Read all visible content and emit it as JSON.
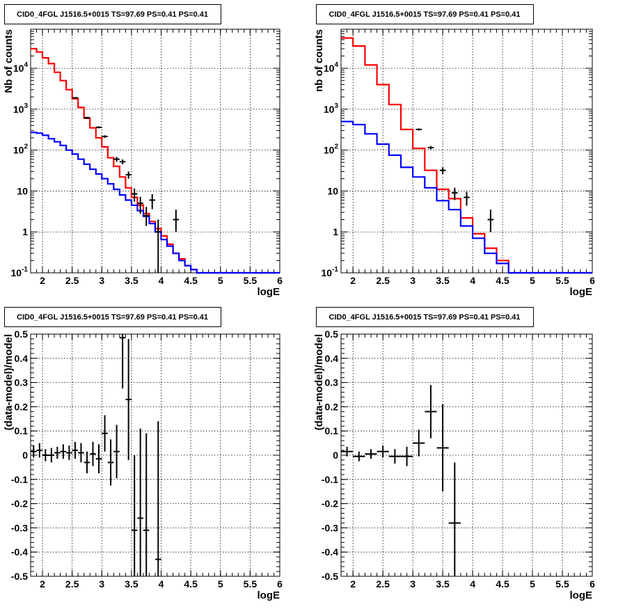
{
  "chart_data": [
    {
      "type": "step",
      "title": "CID0_4FGL J1516.5+0015 TS=97.69 PS=0.41 PS=0.41",
      "xlabel": "logE",
      "ylabel": "Nb of counts",
      "xlim": [
        1.8,
        6
      ],
      "ylim": [
        0.1,
        90000
      ],
      "log_y": true,
      "grid": true,
      "x_ticks": [
        "2",
        "2.5",
        "3",
        "3.5",
        "4",
        "4.5",
        "5",
        "5.5",
        "6"
      ],
      "y_ticks": [
        "10^-1",
        "1",
        "10",
        "10^2",
        "10^3",
        "10^4"
      ],
      "bin_edges": [
        1.8,
        1.9,
        2.0,
        2.1,
        2.2,
        2.3,
        2.4,
        2.5,
        2.6,
        2.7,
        2.8,
        2.9,
        3.0,
        3.1,
        3.2,
        3.3,
        3.4,
        3.5,
        3.6,
        3.7,
        3.8,
        3.9,
        4.0,
        4.1,
        4.2,
        4.3,
        4.4,
        4.5,
        4.6,
        4.7,
        4.8,
        4.9,
        5.0,
        5.1,
        5.2,
        5.3,
        5.4,
        5.5,
        5.6,
        5.7,
        5.8,
        5.9,
        6.0
      ],
      "series": [
        {
          "color": "#ff0000",
          "values": [
            30000,
            25000,
            18000,
            13000,
            8000,
            5000,
            3000,
            1800,
            1100,
            600,
            350,
            200,
            120,
            65,
            40,
            22,
            12,
            7,
            4.5,
            2.8,
            1.8,
            1.2,
            0.8,
            0.5,
            0.3,
            0.22,
            0.15,
            0.12,
            0.1,
            0.1,
            0.1,
            0.1,
            0.1,
            0.1,
            0.1,
            0.1,
            0.1,
            0.1,
            0.1,
            0.1,
            0.1,
            0.1
          ]
        },
        {
          "color": "#0000ff",
          "values": [
            270,
            260,
            230,
            190,
            160,
            130,
            100,
            80,
            60,
            45,
            34,
            26,
            20,
            15,
            11,
            8,
            6,
            4.5,
            3.3,
            2.4,
            1.6,
            1.0,
            0.65,
            0.45,
            0.3,
            0.2,
            0.15,
            0.12,
            0.1,
            0.1,
            0.1,
            0.1,
            0.1,
            0.1,
            0.1,
            0.1,
            0.1,
            0.1,
            0.1,
            0.1,
            0.1,
            0.1
          ]
        }
      ],
      "points": [
        {
          "x": 2.55,
          "y": 1900,
          "elo": 50,
          "ehi": 50
        },
        {
          "x": 2.75,
          "y": 620,
          "elo": 30,
          "ehi": 30
        },
        {
          "x": 2.95,
          "y": 360,
          "elo": 20,
          "ehi": 20
        },
        {
          "x": 3.05,
          "y": 215,
          "elo": 16,
          "ehi": 16
        },
        {
          "x": 3.25,
          "y": 60,
          "elo": 8,
          "ehi": 8
        },
        {
          "x": 3.35,
          "y": 52,
          "elo": 7,
          "ehi": 7
        },
        {
          "x": 3.45,
          "y": 25,
          "elo": 5,
          "ehi": 5
        },
        {
          "x": 3.55,
          "y": 8.5,
          "elo": 3,
          "ehi": 3
        },
        {
          "x": 3.65,
          "y": 5,
          "elo": 2.2,
          "ehi": 2.2
        },
        {
          "x": 3.75,
          "y": 2.5,
          "elo": 1.1,
          "ehi": 1.6
        },
        {
          "x": 3.85,
          "y": 6,
          "elo": 2.4,
          "ehi": 2.4
        },
        {
          "x": 3.95,
          "y": 1,
          "elo": 0.95,
          "ehi": 1.0
        },
        {
          "x": 4.25,
          "y": 2,
          "elo": 1.0,
          "ehi": 1.5
        }
      ]
    },
    {
      "type": "step",
      "title": "CID0_4FGL J1516.5+0015 TS=97.69 PS=0.41 PS=0.41",
      "xlabel": "logE",
      "ylabel": "nb of counts",
      "xlim": [
        1.8,
        6
      ],
      "ylim": [
        0.1,
        90000
      ],
      "log_y": true,
      "grid": true,
      "x_ticks": [
        "2",
        "2.5",
        "3",
        "3.5",
        "4",
        "4.5",
        "5",
        "5.5",
        "6"
      ],
      "y_ticks": [
        "10^-1",
        "1",
        "10",
        "10^2",
        "10^3",
        "10^4"
      ],
      "bin_edges": [
        1.8,
        2.0,
        2.2,
        2.4,
        2.6,
        2.8,
        3.0,
        3.2,
        3.4,
        3.6,
        3.8,
        4.0,
        4.2,
        4.4,
        4.6,
        4.8,
        5.0,
        5.2,
        5.4,
        5.6,
        5.8,
        6.0
      ],
      "series": [
        {
          "color": "#ff0000",
          "values": [
            55000,
            35000,
            12000,
            4000,
            1300,
            320,
            110,
            32,
            11,
            6.5,
            2.2,
            0.9,
            0.4,
            0.2,
            0.1,
            0.1,
            0.1,
            0.1,
            0.1,
            0.1,
            0.1
          ]
        },
        {
          "color": "#0000ff",
          "values": [
            500,
            420,
            250,
            140,
            75,
            38,
            22,
            12,
            5.8,
            3.5,
            1.4,
            0.7,
            0.3,
            0.17,
            0.1,
            0.1,
            0.1,
            0.1,
            0.1,
            0.1,
            0.1
          ]
        }
      ],
      "points": [
        {
          "x": 3.1,
          "y": 320,
          "elo": 18,
          "ehi": 18
        },
        {
          "x": 3.3,
          "y": 115,
          "elo": 11,
          "ehi": 11
        },
        {
          "x": 3.5,
          "y": 32,
          "elo": 6,
          "ehi": 6
        },
        {
          "x": 3.7,
          "y": 9,
          "elo": 3,
          "ehi": 3
        },
        {
          "x": 3.9,
          "y": 7,
          "elo": 2.6,
          "ehi": 2.6
        },
        {
          "x": 4.3,
          "y": 2,
          "elo": 1.0,
          "ehi": 1.5
        }
      ]
    },
    {
      "type": "scatter",
      "title": "CID0_4FGL J1516.5+0015 TS=97.69 PS=0.41 PS=0.41",
      "xlabel": "logE",
      "ylabel": "(data-model)/model",
      "xlim": [
        1.8,
        6
      ],
      "ylim": [
        -0.5,
        0.5
      ],
      "grid": true,
      "x_ticks": [
        "2",
        "2.5",
        "3",
        "3.5",
        "4",
        "4.5",
        "5",
        "5.5",
        "6"
      ],
      "y_ticks": [
        "-0.5",
        "-0.4",
        "-0.3",
        "-0.2",
        "-0.1",
        "0",
        "0.1",
        "0.2",
        "0.3",
        "0.4",
        "0.5"
      ],
      "points": [
        {
          "x": 1.85,
          "y": 0.015,
          "ey": 0.025,
          "ex": 0.05
        },
        {
          "x": 1.95,
          "y": 0.02,
          "ey": 0.03,
          "ex": 0.05
        },
        {
          "x": 2.05,
          "y": 0.0,
          "ey": 0.025,
          "ex": 0.05
        },
        {
          "x": 2.15,
          "y": 0.0,
          "ey": 0.03,
          "ex": 0.05
        },
        {
          "x": 2.25,
          "y": 0.01,
          "ey": 0.025,
          "ex": 0.05
        },
        {
          "x": 2.35,
          "y": 0.015,
          "ey": 0.03,
          "ex": 0.05
        },
        {
          "x": 2.45,
          "y": 0.01,
          "ey": 0.03,
          "ex": 0.05
        },
        {
          "x": 2.55,
          "y": 0.02,
          "ey": 0.035,
          "ex": 0.05
        },
        {
          "x": 2.65,
          "y": 0.01,
          "ey": 0.04,
          "ex": 0.05
        },
        {
          "x": 2.75,
          "y": -0.03,
          "ey": 0.045,
          "ex": 0.05
        },
        {
          "x": 2.85,
          "y": 0.005,
          "ey": 0.05,
          "ex": 0.05
        },
        {
          "x": 2.95,
          "y": -0.015,
          "ey": 0.06,
          "ex": 0.05
        },
        {
          "x": 3.05,
          "y": 0.09,
          "ey": 0.075,
          "ex": 0.05
        },
        {
          "x": 3.15,
          "y": -0.03,
          "ey": 0.095,
          "ex": 0.05
        },
        {
          "x": 3.25,
          "y": 0.015,
          "ey": 0.11,
          "ex": 0.05
        },
        {
          "x": 3.35,
          "y": 0.485,
          "ey": 0.21,
          "ex": 0.05
        },
        {
          "x": 3.45,
          "y": 0.23,
          "ey": 0.25,
          "ex": 0.05
        },
        {
          "x": 3.55,
          "y": -0.31,
          "ey": 0.31,
          "ex": 0.05
        },
        {
          "x": 3.65,
          "y": -0.26,
          "ey": 0.37,
          "ex": 0.05
        },
        {
          "x": 3.75,
          "y": -0.31,
          "ey": 0.4,
          "ex": 0.05
        },
        {
          "x": 3.95,
          "y": -0.43,
          "ey": 0.57,
          "ex": 0.05
        }
      ]
    },
    {
      "type": "scatter",
      "title": "CID0_4FGL J1516.5+0015 TS=97.69 PS=0.41 PS=0.41",
      "xlabel": "logE",
      "ylabel": "(data-model)/model",
      "xlim": [
        1.8,
        6
      ],
      "ylim": [
        -0.5,
        0.5
      ],
      "grid": true,
      "x_ticks": [
        "2",
        "2.5",
        "3",
        "3.5",
        "4",
        "4.5",
        "5",
        "5.5",
        "6"
      ],
      "y_ticks": [
        "-0.5",
        "-0.4",
        "-0.3",
        "-0.2",
        "-0.1",
        "0",
        "0.1",
        "0.2",
        "0.3",
        "0.4",
        "0.5"
      ],
      "points": [
        {
          "x": 1.9,
          "y": 0.015,
          "ey": 0.02,
          "ex": 0.1
        },
        {
          "x": 2.1,
          "y": -0.005,
          "ey": 0.02,
          "ex": 0.1
        },
        {
          "x": 2.3,
          "y": 0.005,
          "ey": 0.02,
          "ex": 0.1
        },
        {
          "x": 2.5,
          "y": 0.015,
          "ey": 0.025,
          "ex": 0.1
        },
        {
          "x": 2.7,
          "y": -0.005,
          "ey": 0.03,
          "ex": 0.1
        },
        {
          "x": 2.9,
          "y": -0.005,
          "ey": 0.04,
          "ex": 0.1
        },
        {
          "x": 3.1,
          "y": 0.05,
          "ey": 0.055,
          "ex": 0.1
        },
        {
          "x": 3.3,
          "y": 0.18,
          "ey": 0.11,
          "ex": 0.1
        },
        {
          "x": 3.5,
          "y": 0.03,
          "ey": 0.18,
          "ex": 0.1
        },
        {
          "x": 3.7,
          "y": -0.28,
          "ey": 0.25,
          "ex": 0.1
        }
      ]
    }
  ]
}
